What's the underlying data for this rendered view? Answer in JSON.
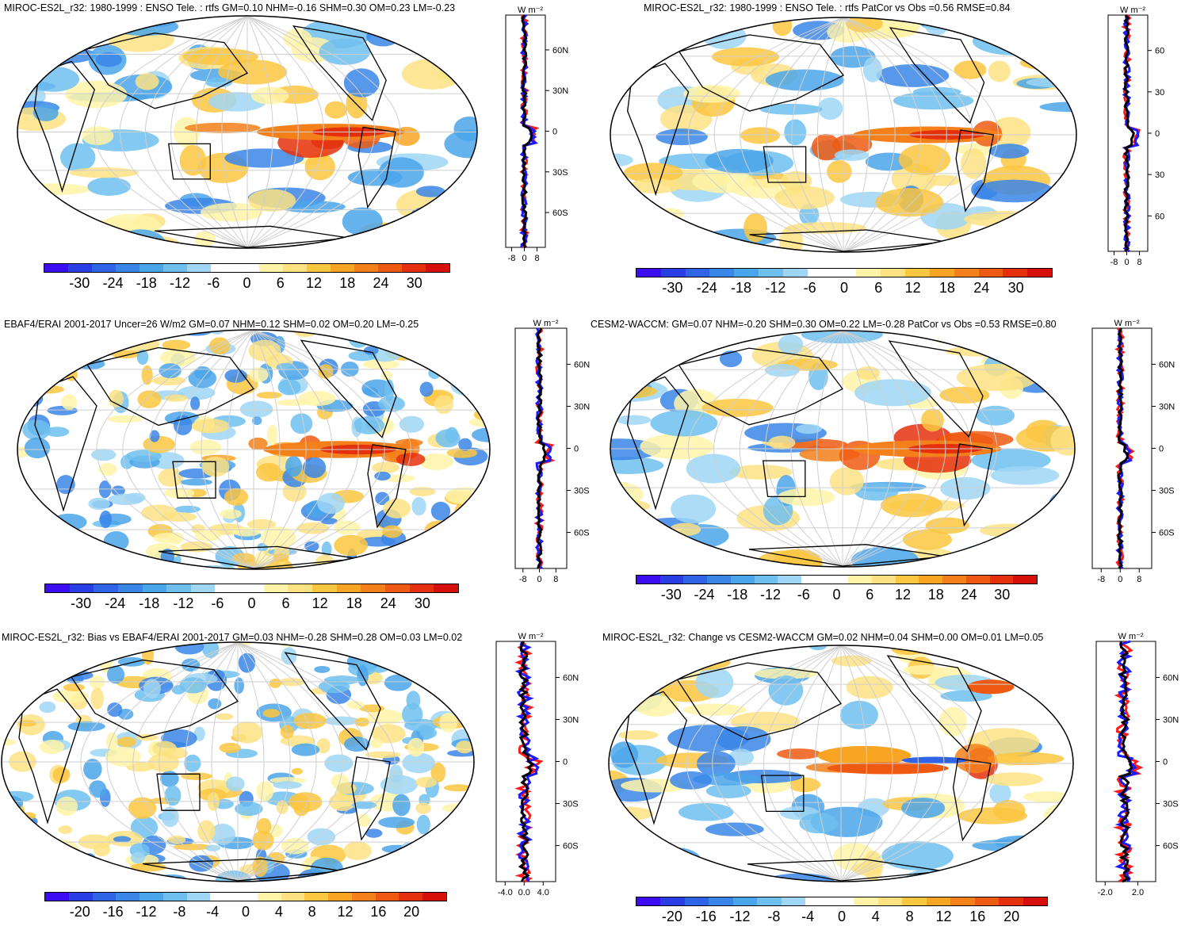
{
  "colors": {
    "palette_30": [
      "#3d0df2",
      "#2a3ee6",
      "#2f64e6",
      "#3a86e8",
      "#4aa5ea",
      "#6fbfee",
      "#9fd6f5",
      "#ffffff",
      "#ffffff",
      "#fff3a8",
      "#fde283",
      "#fbc640",
      "#f8a524",
      "#f3801a",
      "#ee5a12",
      "#e5300d",
      "#d60f0b"
    ],
    "palette_20": [
      "#3d0df2",
      "#2a3ee6",
      "#2f64e6",
      "#3a86e8",
      "#4aa5ea",
      "#6fbfee",
      "#9fd6f5",
      "#ffffff",
      "#ffffff",
      "#fff3a8",
      "#fde283",
      "#fbc640",
      "#f8a524",
      "#f3801a",
      "#ee5a12",
      "#e5300d",
      "#d60f0b"
    ],
    "model_line": "#ff1a1a",
    "obs_line": "#1a1aff",
    "mean_line": "#000000"
  },
  "panels": [
    {
      "title": "MIROC-ES2L_r32: 1980-1999 : ENSO Tele. : rtfs GM=0.10 NHM=-0.16 SHM=0.30 OM=0.23 LM=-0.23",
      "colorbar_ticks": [
        "-30",
        "-24",
        "-18",
        "-12",
        "-6",
        "0",
        "6",
        "12",
        "18",
        "24",
        "30"
      ],
      "zonal_unit": "W m⁻²",
      "zonal_x_ticks": [
        "-8",
        "0",
        "8"
      ],
      "zonal_y_ticks": [
        "60N",
        "30N",
        "0",
        "30S",
        "60S"
      ]
    },
    {
      "title": "MIROC-ES2L_r32: 1980-1999 : ENSO Tele. : rtfs PatCor vs Obs =0.56 RMSE=0.84",
      "colorbar_ticks": [
        "-30",
        "-24",
        "-18",
        "-12",
        "-6",
        "0",
        "6",
        "12",
        "18",
        "24",
        "30"
      ],
      "zonal_unit": "W m⁻²",
      "zonal_x_ticks": [
        "-8",
        "0",
        "8"
      ],
      "zonal_y_ticks": [
        "60",
        "30",
        "0",
        "30",
        "60"
      ]
    },
    {
      "title": "EBAF4/ERAI 2001-2017 Uncer=26 W/m2 GM=0.07 NHM=0.12 SHM=0.02 OM=0.20 LM=-0.25",
      "colorbar_ticks": [
        "-30",
        "-24",
        "-18",
        "-12",
        "-6",
        "0",
        "6",
        "12",
        "18",
        "24",
        "30"
      ],
      "zonal_unit": "W m⁻²",
      "zonal_x_ticks": [
        "-8",
        "0",
        "8"
      ],
      "zonal_y_ticks": [
        "60N",
        "30N",
        "0",
        "30S",
        "60S"
      ]
    },
    {
      "title": "CESM2-WACCM: GM=0.07 NHM=-0.20 SHM=0.30 OM=0.22 LM=-0.28 PatCor vs Obs =0.53 RMSE=0.80",
      "colorbar_ticks": [
        "-30",
        "-24",
        "-18",
        "-12",
        "-6",
        "0",
        "6",
        "12",
        "18",
        "24",
        "30"
      ],
      "zonal_unit": "W m⁻²",
      "zonal_x_ticks": [
        "-8",
        "0",
        "8"
      ],
      "zonal_y_ticks": [
        "60N",
        "30N",
        "0",
        "30S",
        "60S"
      ]
    },
    {
      "title": "MIROC-ES2L_r32: Bias vs EBAF4/ERAI 2001-2017 GM=0.03 NHM=-0.28 SHM=0.28 OM=0.03 LM=0.02",
      "colorbar_ticks": [
        "-20",
        "-16",
        "-12",
        "-8",
        "-4",
        "0",
        "4",
        "8",
        "12",
        "16",
        "20"
      ],
      "zonal_unit": "W m⁻²",
      "zonal_x_ticks": [
        "-4.0",
        "0.0",
        "4.0"
      ],
      "zonal_y_ticks": [
        "60N",
        "30N",
        "0",
        "30S",
        "60S"
      ]
    },
    {
      "title": "MIROC-ES2L_r32: Change vs CESM2-WACCM GM=0.02 NHM=0.04 SHM=0.00 OM=0.01 LM=0.05",
      "colorbar_ticks": [
        "-20",
        "-16",
        "-12",
        "-8",
        "-4",
        "0",
        "4",
        "8",
        "12",
        "16",
        "20"
      ],
      "zonal_unit": "W m⁻²",
      "zonal_x_ticks": [
        "-2.0",
        "2.0"
      ],
      "zonal_y_ticks": [
        "60N",
        "30N",
        "0",
        "30S",
        "60S"
      ]
    }
  ]
}
